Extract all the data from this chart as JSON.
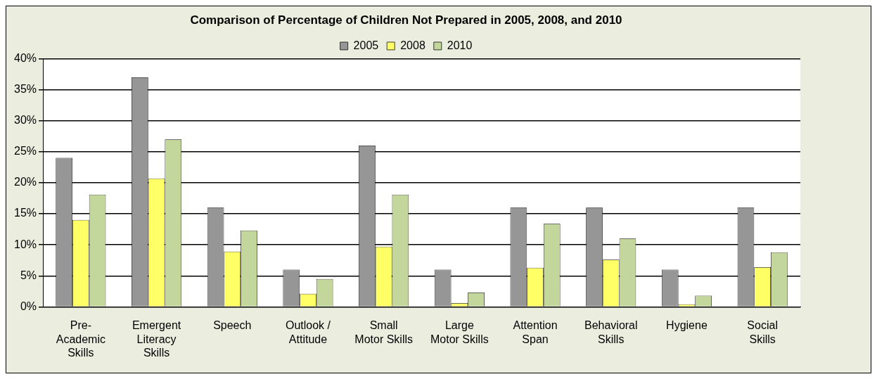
{
  "chart_data": {
    "type": "bar",
    "title": "Comparison of Percentage of Children Not Prepared in 2005, 2008, and 2010",
    "categories": [
      "Pre-Academic Skills",
      "Emergent Literacy Skills",
      "Speech",
      "Outlook / Attitude",
      "Small Motor Skills",
      "Large Motor Skills",
      "Attention Span",
      "Behavioral Skills",
      "Hygiene",
      "Social Skills"
    ],
    "series": [
      {
        "name": "2005",
        "color": "#969696",
        "values": [
          24,
          37,
          16,
          6,
          26,
          6,
          16,
          16,
          6,
          16
        ]
      },
      {
        "name": "2008",
        "color": "#ffff66",
        "values": [
          14,
          20.7,
          8.9,
          2.1,
          9.7,
          0.6,
          6.3,
          7.6,
          0.4,
          6.4
        ]
      },
      {
        "name": "2010",
        "color": "#c3d69b",
        "values": [
          18.1,
          27,
          12.3,
          4.5,
          18.1,
          2.3,
          13.4,
          11,
          1.8,
          8.8
        ]
      }
    ],
    "ylim": [
      0,
      40
    ],
    "yticks": [
      {
        "value": 0,
        "label": "0%"
      },
      {
        "value": 5,
        "label": "5%"
      },
      {
        "value": 10,
        "label": "10%"
      },
      {
        "value": 15,
        "label": "15%"
      },
      {
        "value": 20,
        "label": "20%"
      },
      {
        "value": 25,
        "label": "25%"
      },
      {
        "value": 30,
        "label": "30%"
      },
      {
        "value": 35,
        "label": "35%"
      },
      {
        "value": 40,
        "label": "40%"
      }
    ],
    "grid": "y",
    "legend": "top"
  }
}
